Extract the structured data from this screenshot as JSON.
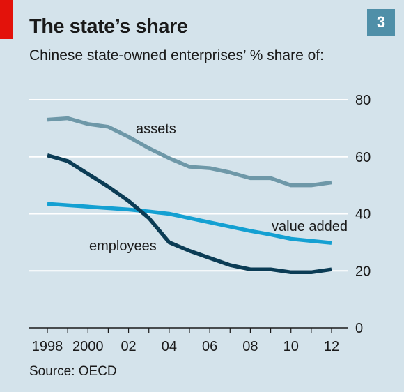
{
  "header": {
    "badge": "3",
    "title": "The state’s share",
    "subtitle": "Chinese state-owned enterprises’ % share of:",
    "accent_color": "#e3120b",
    "badge_color": "#4f8fa8"
  },
  "footer": {
    "source": "Source: OECD"
  },
  "chart_data": {
    "type": "line",
    "x": [
      1998,
      1999,
      2000,
      2001,
      2002,
      2003,
      2004,
      2005,
      2006,
      2007,
      2008,
      2009,
      2010,
      2011,
      2012
    ],
    "x_tick_labels": [
      "1998",
      "2000",
      "02",
      "04",
      "06",
      "08",
      "10",
      "12"
    ],
    "x_tick_values": [
      1998,
      2000,
      2002,
      2004,
      2006,
      2008,
      2010,
      2012
    ],
    "ylim": [
      0,
      80
    ],
    "y_ticks": [
      0,
      20,
      40,
      60,
      80
    ],
    "y_axis_side": "right",
    "grid": true,
    "legend": "inline labels",
    "series": [
      {
        "name": "assets",
        "color": "#6e98a8",
        "values": [
          73,
          73.5,
          71.5,
          70.5,
          67,
          63,
          59.5,
          56.5,
          56,
          54.5,
          52.5,
          52.5,
          50,
          50,
          51
        ]
      },
      {
        "name": "value added",
        "color": "#14a0d2",
        "values": [
          43.5,
          43,
          42.5,
          42,
          41.5,
          40.8,
          40,
          38.5,
          37,
          35.5,
          34,
          32.7,
          31.2,
          30.5,
          29.8
        ]
      },
      {
        "name": "employees",
        "color": "#0b3c55",
        "values": [
          60.5,
          58.5,
          54,
          49.5,
          44.5,
          38.5,
          30,
          27,
          24.5,
          22,
          20.5,
          20.5,
          19.5,
          19.5,
          20.5
        ]
      }
    ]
  }
}
